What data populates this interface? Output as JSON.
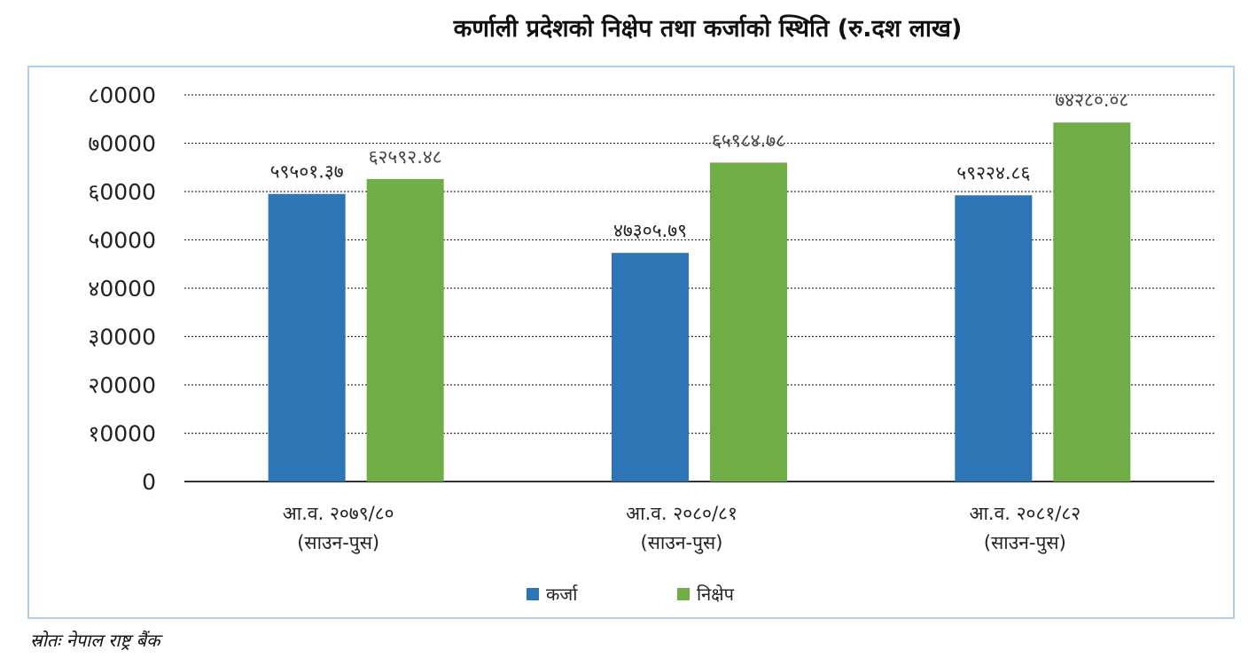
{
  "title": "कर्णाली प्रदेशको निक्षेप तथा कर्जाको स्थिति (रु.दश लाख)",
  "source": "स्रोतः नेपाल राष्ट्र बैंक",
  "colors": {
    "karja": "#2e75b6",
    "nikshep": "#70ad47",
    "frame": "#a9d3e4",
    "grid": "#333333"
  },
  "chart_data": {
    "type": "bar",
    "categories": [
      [
        "आ.व. २०७९/८०",
        "(साउन-पुस)"
      ],
      [
        "आ.व. २०८०/८१",
        "(साउन-पुस)"
      ],
      [
        "आ.व. २०८१/८२",
        "(साउन-पुस)"
      ]
    ],
    "series": [
      {
        "name": "कर्जा",
        "values": [
          59501.37,
          47305.79,
          59224.86
        ],
        "labels": [
          "५९५०१.३७",
          "४७३०५.७९",
          "५९२२४.८६"
        ]
      },
      {
        "name": "निक्षेप",
        "values": [
          62592.48,
          65984.78,
          74280.08
        ],
        "labels": [
          "६२५९२.४८",
          "६५९८४.७८",
          "७४२८०.०८"
        ]
      }
    ],
    "ylim": [
      0,
      80000
    ],
    "yticks": [
      {
        "value": 0,
        "label": "0"
      },
      {
        "value": 10000,
        "label": "१0000"
      },
      {
        "value": 20000,
        "label": "२0000"
      },
      {
        "value": 30000,
        "label": "३0000"
      },
      {
        "value": 40000,
        "label": "४0000"
      },
      {
        "value": 50000,
        "label": "५0000"
      },
      {
        "value": 60000,
        "label": "६0000"
      },
      {
        "value": 70000,
        "label": "७0000"
      },
      {
        "value": 80000,
        "label": "८0000"
      }
    ],
    "grid": true,
    "legend": "bottom"
  }
}
